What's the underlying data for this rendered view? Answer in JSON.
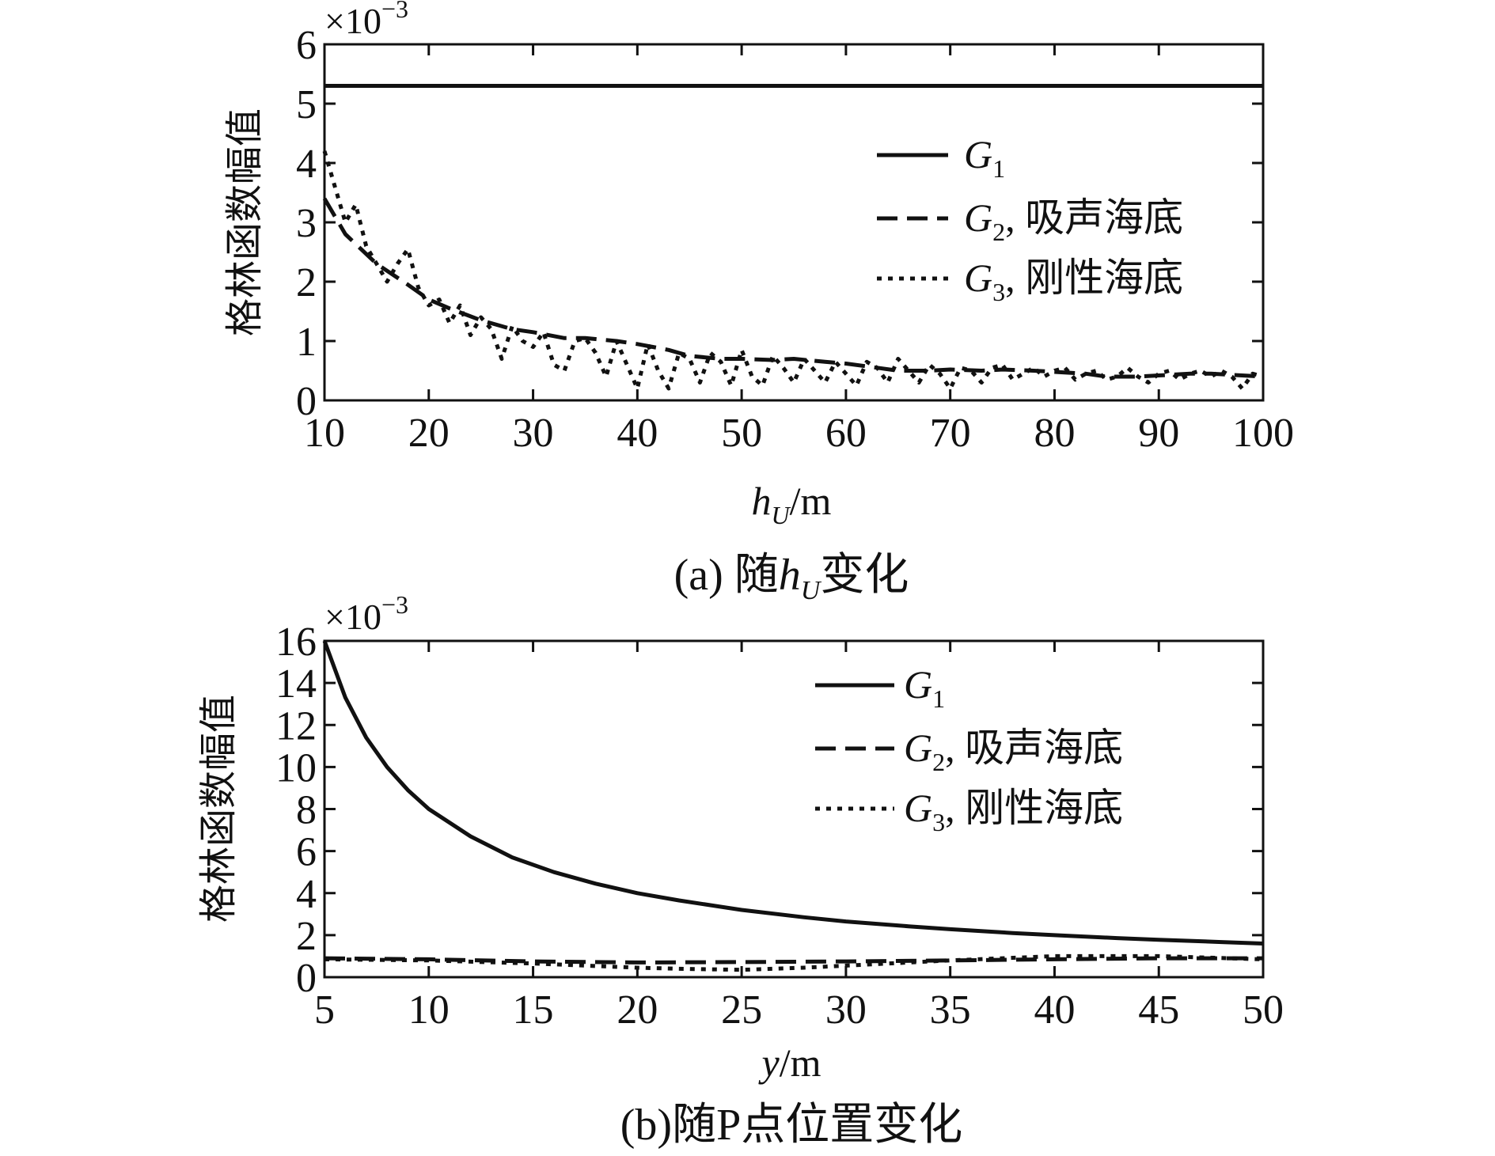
{
  "chart_data": [
    {
      "type": "line",
      "panel": "a",
      "caption_prefix": "(a) 随",
      "caption_var": "h",
      "caption_sub": "U",
      "caption_suffix": "变化",
      "ylabel": "格林函数幅值",
      "xlabel_var": "h",
      "xlabel_sub": "U",
      "xlabel_unit": "/m",
      "y_multiplier_base": "×10",
      "y_multiplier_exp": "−3",
      "xlim": [
        10,
        100
      ],
      "ylim": [
        0,
        6
      ],
      "xticks": [
        "10",
        "20",
        "30",
        "40",
        "50",
        "60",
        "70",
        "80",
        "90",
        "100"
      ],
      "yticks": [
        "0",
        "1",
        "2",
        "3",
        "4",
        "5",
        "6"
      ],
      "legend_position": "top-right",
      "series": [
        {
          "name": "G1",
          "legend_var": "G",
          "legend_sub": "1",
          "legend_text": "",
          "style": "solid",
          "x": [
            10,
            100
          ],
          "values": [
            5.3,
            5.3
          ]
        },
        {
          "name": "G2, 吸声海底",
          "legend_var": "G",
          "legend_sub": "2",
          "legend_text": ", 吸声海底",
          "style": "dashed",
          "x": [
            10,
            12,
            15,
            18,
            20,
            22,
            25,
            28,
            30,
            33,
            35,
            38,
            40,
            43,
            45,
            48,
            50,
            53,
            55,
            58,
            60,
            63,
            65,
            68,
            70,
            73,
            75,
            78,
            80,
            83,
            85,
            88,
            90,
            93,
            95,
            98,
            100
          ],
          "values": [
            3.4,
            2.8,
            2.3,
            1.95,
            1.7,
            1.55,
            1.35,
            1.2,
            1.15,
            1.05,
            1.05,
            1.0,
            0.95,
            0.85,
            0.75,
            0.7,
            0.7,
            0.68,
            0.7,
            0.65,
            0.62,
            0.55,
            0.5,
            0.5,
            0.52,
            0.5,
            0.52,
            0.5,
            0.48,
            0.45,
            0.4,
            0.4,
            0.42,
            0.45,
            0.45,
            0.42,
            0.4
          ]
        },
        {
          "name": "G3, 刚性海底",
          "legend_var": "G",
          "legend_sub": "3",
          "legend_text": ", 刚性海底",
          "style": "dotted",
          "x": [
            10,
            11,
            12,
            13,
            14,
            15,
            16,
            17,
            18,
            19,
            20,
            21,
            22,
            23,
            24,
            25,
            26,
            27,
            28,
            29,
            30,
            31,
            32,
            33,
            34,
            35,
            36,
            37,
            38,
            39,
            40,
            41,
            42,
            43,
            44,
            45,
            46,
            47,
            48,
            49,
            50,
            51,
            52,
            53,
            54,
            55,
            56,
            57,
            58,
            59,
            60,
            61,
            62,
            63,
            64,
            65,
            66,
            67,
            68,
            69,
            70,
            71,
            72,
            73,
            74,
            75,
            76,
            77,
            78,
            79,
            80,
            81,
            82,
            83,
            84,
            85,
            86,
            87,
            88,
            89,
            90,
            91,
            92,
            93,
            94,
            95,
            96,
            97,
            98,
            99,
            100
          ],
          "values": [
            4.2,
            3.6,
            3.0,
            3.3,
            2.6,
            2.3,
            2.0,
            2.3,
            2.55,
            1.9,
            1.6,
            1.7,
            1.3,
            1.6,
            1.1,
            1.4,
            1.2,
            0.7,
            1.25,
            1.0,
            0.9,
            1.15,
            0.6,
            0.5,
            1.0,
            1.05,
            0.8,
            0.4,
            1.0,
            0.6,
            0.2,
            0.95,
            0.5,
            0.2,
            0.8,
            0.7,
            0.3,
            0.8,
            0.65,
            0.25,
            0.85,
            0.4,
            0.25,
            0.75,
            0.55,
            0.3,
            0.7,
            0.5,
            0.3,
            0.65,
            0.45,
            0.25,
            0.65,
            0.55,
            0.3,
            0.7,
            0.5,
            0.3,
            0.6,
            0.45,
            0.2,
            0.55,
            0.5,
            0.3,
            0.55,
            0.6,
            0.35,
            0.45,
            0.55,
            0.4,
            0.5,
            0.55,
            0.35,
            0.45,
            0.5,
            0.35,
            0.4,
            0.55,
            0.4,
            0.3,
            0.45,
            0.5,
            0.35,
            0.45,
            0.5,
            0.4,
            0.5,
            0.4,
            0.2,
            0.45,
            0.4
          ]
        }
      ]
    },
    {
      "type": "line",
      "panel": "b",
      "caption_prefix": "(b)随P点位置变化",
      "ylabel": "格林函数幅值",
      "xlabel_var": "y",
      "xlabel_unit": "/m",
      "y_multiplier_base": "×10",
      "y_multiplier_exp": "−3",
      "xlim": [
        5,
        50
      ],
      "ylim": [
        0,
        16
      ],
      "xticks": [
        "5",
        "10",
        "15",
        "20",
        "25",
        "30",
        "35",
        "40",
        "45",
        "50"
      ],
      "yticks": [
        "0",
        "2",
        "4",
        "6",
        "8",
        "10",
        "12",
        "14",
        "16"
      ],
      "legend_position": "top-right",
      "series": [
        {
          "name": "G1",
          "legend_var": "G",
          "legend_sub": "1",
          "legend_text": "",
          "style": "solid",
          "x": [
            5,
            6,
            7,
            8,
            9,
            10,
            12,
            14,
            16,
            18,
            20,
            22,
            25,
            28,
            30,
            33,
            35,
            38,
            40,
            43,
            45,
            48,
            50
          ],
          "values": [
            16.0,
            13.3,
            11.4,
            10.0,
            8.9,
            8.0,
            6.7,
            5.7,
            5.0,
            4.45,
            4.0,
            3.65,
            3.2,
            2.85,
            2.65,
            2.42,
            2.28,
            2.1,
            2.0,
            1.86,
            1.78,
            1.67,
            1.6
          ]
        },
        {
          "name": "G2, 吸声海底",
          "legend_var": "G",
          "legend_sub": "2",
          "legend_text": ", 吸声海底",
          "style": "dashed",
          "x": [
            5,
            10,
            15,
            20,
            25,
            30,
            35,
            40,
            45,
            50
          ],
          "values": [
            0.9,
            0.85,
            0.75,
            0.7,
            0.72,
            0.75,
            0.8,
            0.85,
            0.9,
            0.9
          ]
        },
        {
          "name": "G3, 刚性海底",
          "legend_var": "G",
          "legend_sub": "3",
          "legend_text": ", 刚性海底",
          "style": "dotted",
          "x": [
            5,
            10,
            15,
            20,
            22,
            25,
            28,
            30,
            35,
            40,
            45,
            50
          ],
          "values": [
            0.85,
            0.8,
            0.65,
            0.45,
            0.4,
            0.35,
            0.45,
            0.55,
            0.8,
            1.0,
            1.0,
            0.85
          ]
        }
      ]
    }
  ]
}
